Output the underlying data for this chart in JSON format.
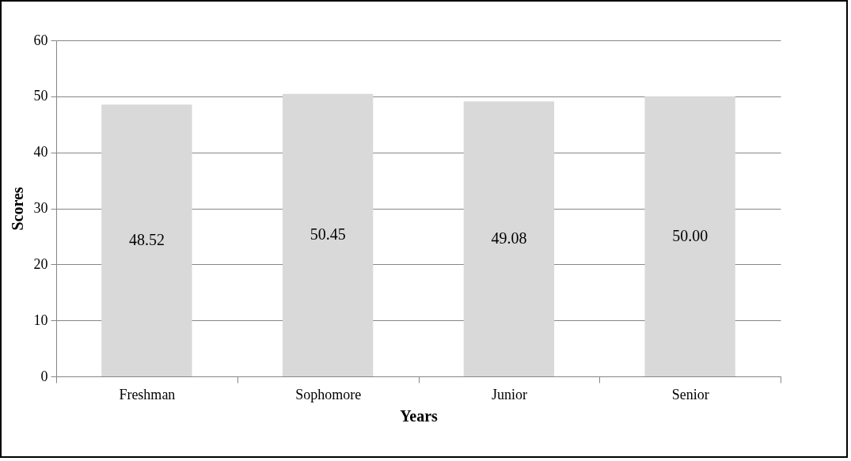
{
  "chart_data": {
    "type": "bar",
    "xlabel": "Years",
    "ylabel": "Scores",
    "categories": [
      "Freshman",
      "Sophomore",
      "Junior",
      "Senior"
    ],
    "values": [
      48.52,
      50.45,
      49.08,
      50.0
    ],
    "value_labels": [
      "48.52",
      "50.45",
      "49.08",
      "50.00"
    ],
    "color": "#d9d9d9",
    "ylim": [
      0,
      60
    ],
    "yticks": [
      0,
      10,
      20,
      30,
      40,
      50,
      60
    ],
    "grid": "y"
  }
}
